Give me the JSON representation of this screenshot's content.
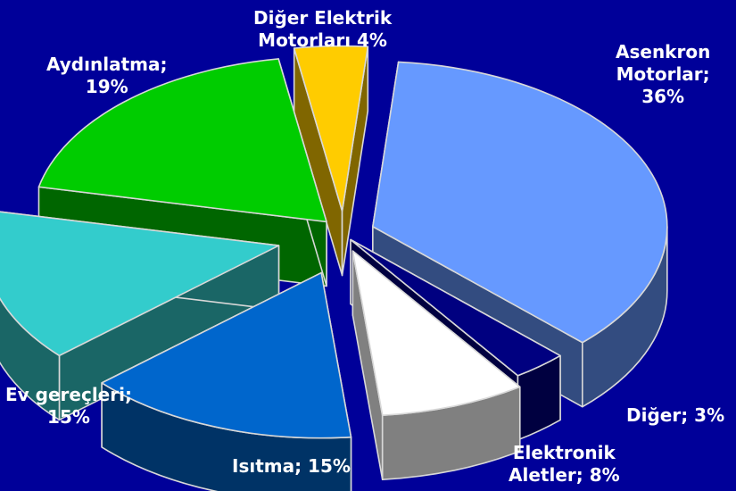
{
  "chart_data": {
    "type": "pie",
    "style": "3d-exploded",
    "background_color": "#000099",
    "label_color": "#ffffff",
    "slices": [
      {
        "name": "Asenkron Motorlar",
        "value": 36,
        "label_lines": [
          "Asenkron",
          "Motorlar;",
          "36%"
        ],
        "top_color": "#6699ff",
        "side_color": "#334c80"
      },
      {
        "name": "Diğer",
        "value": 3,
        "label_lines": [
          "Diğer; 3%"
        ],
        "top_color": "#000080",
        "side_color": "#000040"
      },
      {
        "name": "Elektronik Aletler",
        "value": 8,
        "label_lines": [
          "Elektronik",
          "Aletler; 8%"
        ],
        "top_color": "#ffffff",
        "side_color": "#808080"
      },
      {
        "name": "Isıtma",
        "value": 15,
        "label_lines": [
          "Isıtma; 15%"
        ],
        "top_color": "#0066cc",
        "side_color": "#003366"
      },
      {
        "name": "Ev gereçleri",
        "value": 15,
        "label_lines": [
          "Ev gereçleri;",
          "15%"
        ],
        "top_color": "#33cccc",
        "side_color": "#1a6666"
      },
      {
        "name": "Aydınlatma",
        "value": 19,
        "label_lines": [
          "Aydınlatma;",
          "19%"
        ],
        "top_color": "#00cc00",
        "side_color": "#006600"
      },
      {
        "name": "Diğer Elektrik Motorları",
        "value": 4,
        "label_lines": [
          "Diğer Elektrik",
          "Motorları 4%"
        ],
        "top_color": "#ffcc00",
        "side_color": "#806600"
      }
    ]
  }
}
